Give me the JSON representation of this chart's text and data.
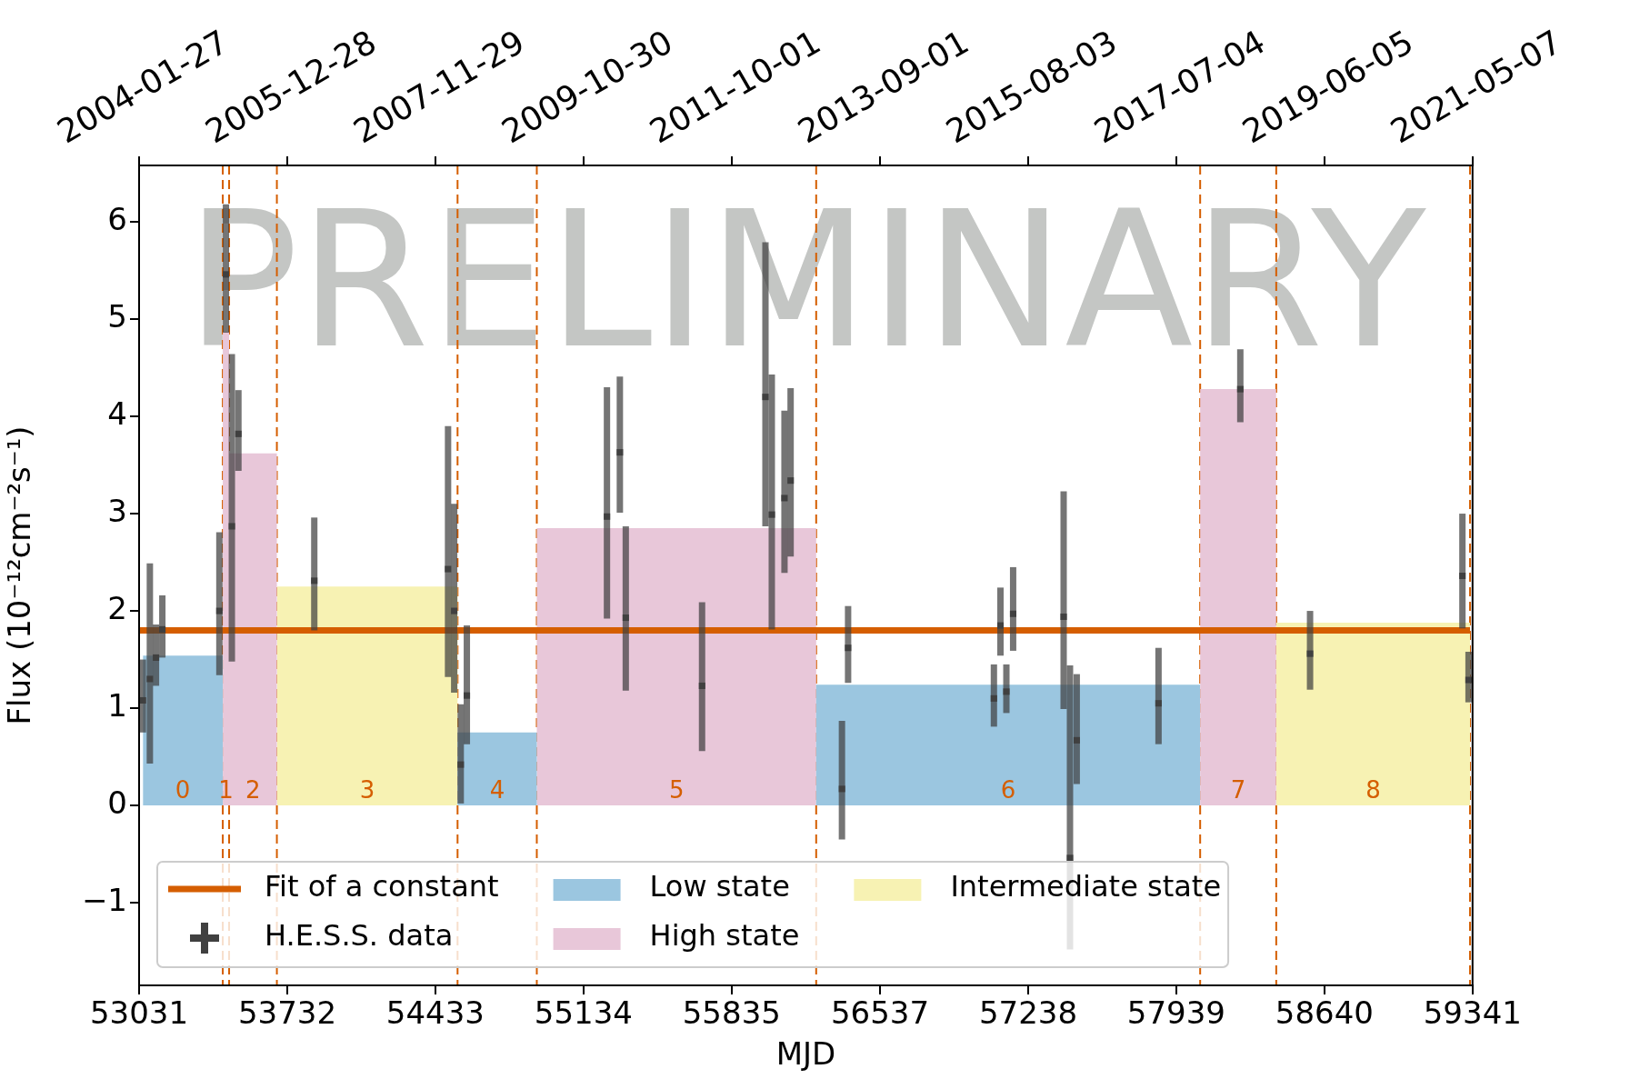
{
  "chart_data": {
    "type": "scatter",
    "xlabel": "MJD",
    "ylabel": "Flux (10⁻¹²cm⁻²s⁻¹)",
    "xlim": [
      53031,
      59341
    ],
    "xticks": [
      53031,
      53732,
      54433,
      55134,
      55835,
      56537,
      57238,
      57939,
      58640,
      59341
    ],
    "x2lim": [
      "2004-01-27",
      "2021-05-07"
    ],
    "x2ticks": [
      "2004-01-27",
      "2005-12-28",
      "2007-11-29",
      "2009-10-30",
      "2011-10-01",
      "2013-09-01",
      "2015-08-03",
      "2017-07-04",
      "2019-06-05",
      "2021-05-07"
    ],
    "ylim": [
      -1.85,
      6.58
    ],
    "yticks": [
      {
        "value": -1,
        "label": "−1"
      },
      0,
      1,
      2,
      3,
      4,
      5,
      6
    ],
    "grid": false,
    "legend": "bottom",
    "series": [
      {
        "name": "Fit of a constant",
        "type": "line",
        "color": "#d55e00",
        "x": [
          53031,
          59329
        ],
        "values": [
          1.8,
          1.8
        ]
      },
      {
        "name": "H.E.S.S. data",
        "color": "#404040",
        "marker": "square",
        "x": [
          53049,
          53082,
          53111,
          53141,
          53411,
          53442,
          53470,
          53501,
          53860,
          54493,
          54522,
          54553,
          54582,
          55245,
          55306,
          55334,
          55695,
          55995,
          56025,
          56085,
          56114,
          56357,
          56386,
          57076,
          57107,
          57135,
          57167,
          57406,
          57436,
          57468,
          57855,
          58242,
          58572,
          59293,
          59322
        ],
        "values": [
          1.08,
          1.3,
          1.52,
          1.81,
          2.0,
          5.46,
          2.87,
          3.82,
          2.31,
          2.43,
          2.0,
          0.42,
          1.13,
          2.97,
          3.63,
          1.93,
          1.23,
          4.2,
          2.99,
          3.16,
          3.34,
          0.17,
          1.62,
          1.1,
          1.85,
          1.17,
          1.97,
          1.94,
          -0.54,
          0.67,
          1.05,
          4.28,
          1.56,
          2.36,
          1.29
        ],
        "errors": [
          [
            0.75,
            1.5
          ],
          [
            0.43,
            2.49
          ],
          [
            1.23,
            1.86
          ],
          [
            1.52,
            2.16
          ],
          [
            1.34,
            2.81
          ],
          [
            4.86,
            6.18
          ],
          [
            1.48,
            4.64
          ],
          [
            3.44,
            4.27
          ],
          [
            1.8,
            2.96
          ],
          [
            1.32,
            3.9
          ],
          [
            1.16,
            3.1
          ],
          [
            0.02,
            1.04
          ],
          [
            0.63,
            1.85
          ],
          [
            1.92,
            4.3
          ],
          [
            3.01,
            4.41
          ],
          [
            1.18,
            2.87
          ],
          [
            0.56,
            2.09
          ],
          [
            2.87,
            5.79
          ],
          [
            1.81,
            4.43
          ],
          [
            2.39,
            4.06
          ],
          [
            2.56,
            4.29
          ],
          [
            -0.35,
            0.87
          ],
          [
            1.26,
            2.05
          ],
          [
            0.81,
            1.45
          ],
          [
            1.54,
            2.24
          ],
          [
            0.95,
            1.45
          ],
          [
            1.59,
            2.45
          ],
          [
            0.99,
            3.23
          ],
          [
            -1.48,
            1.44
          ],
          [
            0.22,
            1.35
          ],
          [
            0.63,
            1.62
          ],
          [
            3.94,
            4.69
          ],
          [
            1.19,
            2.0
          ],
          [
            1.82,
            3.0
          ],
          [
            1.06,
            1.58
          ]
        ]
      },
      {
        "name": "Low state",
        "type": "area",
        "color": "#9bc6e0",
        "x": [
          53049,
          53049,
          53427,
          53427,
          54538,
          54538,
          54913,
          54913,
          56235,
          56235,
          58052,
          58052
        ],
        "values": [
          0,
          1.54,
          1.54,
          0,
          0,
          0.75,
          0.75,
          0,
          0,
          1.24,
          1.24,
          0
        ]
      },
      {
        "name": "High state",
        "type": "area",
        "color": "#e8c7d9",
        "x": [
          53427,
          53427,
          53457,
          53457,
          53457,
          53457,
          53683,
          53683,
          54913,
          54913,
          56235,
          56235,
          58052,
          58052,
          58412,
          58412
        ],
        "values": [
          0,
          4.87,
          4.87,
          0,
          0,
          3.62,
          3.62,
          0,
          0,
          2.85,
          2.85,
          0,
          0,
          4.28,
          4.28,
          0
        ]
      },
      {
        "name": "Intermediate state",
        "type": "area",
        "color": "#f7f2b3",
        "x": [
          53683,
          53683,
          54538,
          54538,
          58412,
          58412,
          59329,
          59329
        ],
        "values": [
          0,
          2.25,
          2.25,
          0,
          0,
          1.88,
          1.88,
          0
        ]
      }
    ],
    "ref_lines": [
      {
        "axis": "x",
        "value": 53427,
        "color": "#d55e00",
        "line_style": "dashed"
      },
      {
        "axis": "x",
        "value": 53457,
        "color": "#d55e00",
        "line_style": "dashed"
      },
      {
        "axis": "x",
        "value": 53683,
        "color": "#d55e00",
        "line_style": "dashed"
      },
      {
        "axis": "x",
        "value": 54538,
        "color": "#d55e00",
        "line_style": "dashed"
      },
      {
        "axis": "x",
        "value": 54913,
        "color": "#d55e00",
        "line_style": "dashed"
      },
      {
        "axis": "x",
        "value": 56235,
        "color": "#d55e00",
        "line_style": "dashed"
      },
      {
        "axis": "x",
        "value": 58052,
        "color": "#d55e00",
        "line_style": "dashed"
      },
      {
        "axis": "x",
        "value": 58412,
        "color": "#d55e00",
        "line_style": "dashed"
      },
      {
        "axis": "x",
        "value": 59329,
        "color": "#d55e00",
        "line_style": "dashed"
      }
    ],
    "annotations": [
      "PRELIMINARY",
      "0",
      "1",
      "2",
      "3",
      "4",
      "5",
      "6",
      "7",
      "8"
    ]
  }
}
